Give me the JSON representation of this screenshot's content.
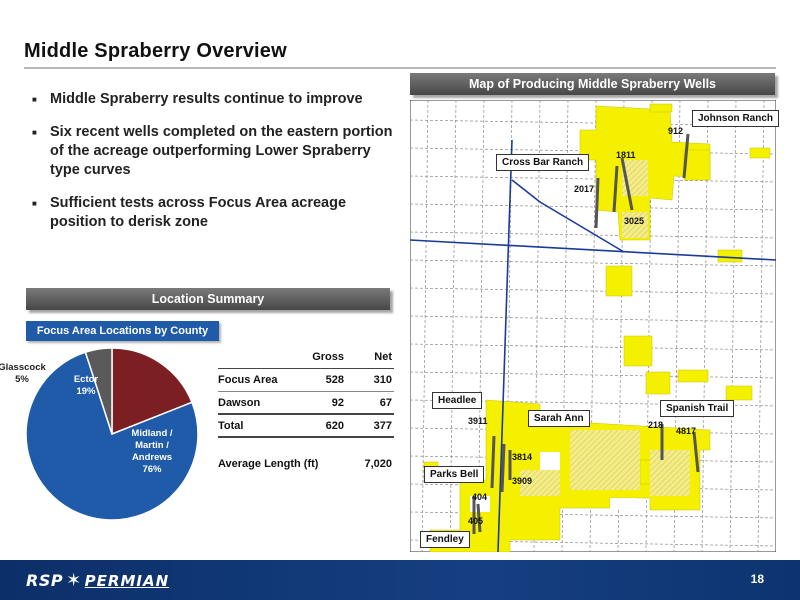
{
  "title": "Middle Spraberry Overview",
  "bullets": [
    "Middle Spraberry results continue to improve",
    "Six recent wells completed on the eastern portion of the acreage outperforming Lower Spraberry type curves",
    "Sufficient tests across Focus Area acreage position to derisk zone"
  ],
  "location_summary_header": "Location Summary",
  "focus_area_tag": "Focus Area Locations by County",
  "chart_data": {
    "type": "pie",
    "title": "Focus Area Locations by County",
    "slices": [
      {
        "label": "Midland / Martin / Andrews",
        "value": 76,
        "pct_label": "76%",
        "color": "#1f5ba8"
      },
      {
        "label": "Glasscock",
        "value": 5,
        "pct_label": "5%",
        "color": "#5a5a5a"
      },
      {
        "label": "Ector",
        "value": 19,
        "pct_label": "19%",
        "color": "#7b1f22"
      }
    ]
  },
  "table": {
    "headers": [
      "",
      "Gross",
      "Net"
    ],
    "rows": [
      {
        "label": "Focus Area",
        "gross": "528",
        "net": "310"
      },
      {
        "label": "Dawson",
        "gross": "92",
        "net": "67"
      }
    ],
    "total": {
      "label": "Total",
      "gross": "620",
      "net": "377"
    },
    "average_length": {
      "label": "Average Length (ft)",
      "value": "7,020"
    }
  },
  "map": {
    "header": "Map of Producing Middle Spraberry Wells",
    "labels": {
      "johnson_ranch": "Johnson Ranch",
      "cross_bar_ranch": "Cross Bar Ranch",
      "headlee": "Headlee",
      "sarah_ann": "Sarah Ann",
      "spanish_trail": "Spanish Trail",
      "parks_bell": "Parks Bell",
      "fendley": "Fendley"
    },
    "wells": {
      "w912": "912",
      "w1811": "1811",
      "w2017": "2017",
      "w3025": "3025",
      "w3911": "3911",
      "w3814": "3814",
      "w3909": "3909",
      "w404": "404",
      "w405": "405",
      "w218": "218",
      "w4817": "4817"
    }
  },
  "footer": {
    "logo_part1": "RSP",
    "logo_part2": "PERMIAN",
    "page_number": "18"
  }
}
